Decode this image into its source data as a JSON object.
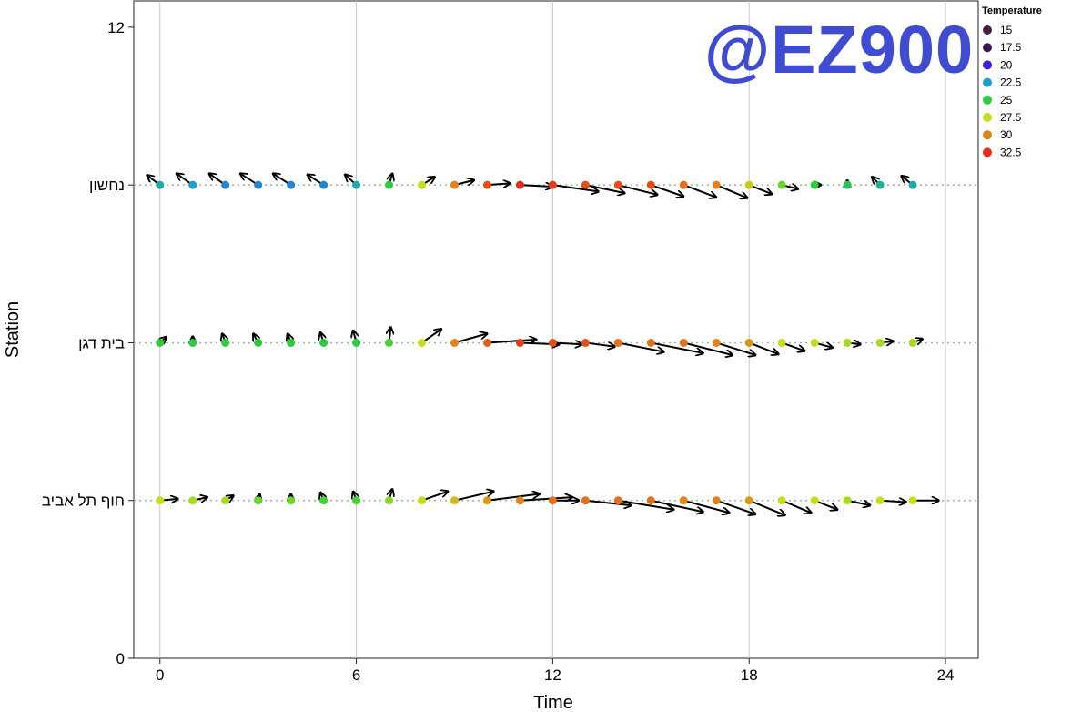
{
  "watermark": "@EZ900",
  "chart_data": {
    "type": "scatter",
    "xlabel": "Time",
    "ylabel": "Station",
    "xlim": [
      -0.8,
      25
    ],
    "ylim": [
      0,
      12.5
    ],
    "x_ticks": [
      0,
      6,
      12,
      18,
      24
    ],
    "x_tick_labels": [
      "0",
      "6",
      "12",
      "18",
      "24"
    ],
    "y_ticks": [
      0,
      12
    ],
    "y_tick_labels": [
      "0",
      "12"
    ],
    "y_category_ticks": [
      {
        "value": 9,
        "label": "נחשון"
      },
      {
        "value": 6,
        "label": "בית דגן"
      },
      {
        "value": 3,
        "label": "חוף תל אביב"
      }
    ],
    "grid": "vertical at x ticks",
    "reference_lines": "dotted horizontal line at each station",
    "legend": {
      "title": "Temperature",
      "position": "top-right",
      "entries": [
        {
          "label": "15",
          "color": "#4a2040"
        },
        {
          "label": "17.5",
          "color": "#3c1654"
        },
        {
          "label": "20",
          "color": "#3a1fd6"
        },
        {
          "label": "22.5",
          "color": "#1f9ec9"
        },
        {
          "label": "25",
          "color": "#2ccc3e"
        },
        {
          "label": "27.5",
          "color": "#c6dd1e"
        },
        {
          "label": "30",
          "color": "#e0831a"
        },
        {
          "label": "32.5",
          "color": "#e62a1c"
        }
      ]
    },
    "series": [
      {
        "station": "נחשון",
        "y": 9,
        "points": [
          {
            "x": 0,
            "temp": 23.0,
            "u": -0.4,
            "v": 0.3
          },
          {
            "x": 1,
            "temp": 22.5,
            "u": -0.5,
            "v": 0.35
          },
          {
            "x": 2,
            "temp": 22.0,
            "u": -0.5,
            "v": 0.35
          },
          {
            "x": 3,
            "temp": 22.0,
            "u": -0.55,
            "v": 0.35
          },
          {
            "x": 4,
            "temp": 22.0,
            "u": -0.55,
            "v": 0.35
          },
          {
            "x": 5,
            "temp": 22.0,
            "u": -0.5,
            "v": 0.32
          },
          {
            "x": 6,
            "temp": 23.0,
            "u": -0.35,
            "v": 0.32
          },
          {
            "x": 7,
            "temp": 25.0,
            "u": 0.1,
            "v": 0.35
          },
          {
            "x": 8,
            "temp": 27.5,
            "u": 0.4,
            "v": 0.25
          },
          {
            "x": 9,
            "temp": 30.0,
            "u": 0.6,
            "v": 0.15
          },
          {
            "x": 10,
            "temp": 31.5,
            "u": 0.7,
            "v": 0.05
          },
          {
            "x": 11,
            "temp": 32.5,
            "u": 1.0,
            "v": -0.05
          },
          {
            "x": 12,
            "temp": 32.0,
            "u": 1.4,
            "v": -0.2
          },
          {
            "x": 13,
            "temp": 31.5,
            "u": 1.2,
            "v": -0.25
          },
          {
            "x": 14,
            "temp": 31.5,
            "u": 1.2,
            "v": -0.3
          },
          {
            "x": 15,
            "temp": 31.5,
            "u": 1.0,
            "v": -0.35
          },
          {
            "x": 16,
            "temp": 30.5,
            "u": 1.0,
            "v": -0.38
          },
          {
            "x": 17,
            "temp": 30.0,
            "u": 0.95,
            "v": -0.4
          },
          {
            "x": 18,
            "temp": 28.0,
            "u": 0.7,
            "v": -0.28
          },
          {
            "x": 19,
            "temp": 26.0,
            "u": 0.5,
            "v": -0.12
          },
          {
            "x": 20,
            "temp": 25.0,
            "u": 0.2,
            "v": 0.0
          },
          {
            "x": 21,
            "temp": 24.5,
            "u": 0.0,
            "v": 0.15
          },
          {
            "x": 22,
            "temp": 23.5,
            "u": -0.25,
            "v": 0.25
          },
          {
            "x": 23,
            "temp": 23.0,
            "u": -0.35,
            "v": 0.28
          }
        ]
      },
      {
        "station": "בית דגן",
        "y": 6,
        "points": [
          {
            "x": 0,
            "temp": 25.0,
            "u": 0.2,
            "v": 0.18
          },
          {
            "x": 1,
            "temp": 25.0,
            "u": 0.0,
            "v": 0.2
          },
          {
            "x": 2,
            "temp": 25.0,
            "u": -0.1,
            "v": 0.28
          },
          {
            "x": 3,
            "temp": 25.0,
            "u": -0.15,
            "v": 0.28
          },
          {
            "x": 4,
            "temp": 25.0,
            "u": -0.1,
            "v": 0.28
          },
          {
            "x": 5,
            "temp": 25.0,
            "u": -0.1,
            "v": 0.32
          },
          {
            "x": 6,
            "temp": 25.0,
            "u": -0.1,
            "v": 0.38
          },
          {
            "x": 7,
            "temp": 25.5,
            "u": 0.05,
            "v": 0.48
          },
          {
            "x": 8,
            "temp": 27.5,
            "u": 0.6,
            "v": 0.42
          },
          {
            "x": 9,
            "temp": 30.0,
            "u": 1.0,
            "v": 0.28
          },
          {
            "x": 10,
            "temp": 31.0,
            "u": 1.5,
            "v": 0.1
          },
          {
            "x": 11,
            "temp": 32.0,
            "u": 1.2,
            "v": -0.05
          },
          {
            "x": 12,
            "temp": 31.5,
            "u": 0.9,
            "v": -0.05
          },
          {
            "x": 13,
            "temp": 31.5,
            "u": 0.9,
            "v": -0.12
          },
          {
            "x": 14,
            "temp": 30.5,
            "u": 1.4,
            "v": -0.28
          },
          {
            "x": 15,
            "temp": 30.5,
            "u": 1.6,
            "v": -0.32
          },
          {
            "x": 16,
            "temp": 30.5,
            "u": 1.5,
            "v": -0.38
          },
          {
            "x": 17,
            "temp": 30.0,
            "u": 1.2,
            "v": -0.38
          },
          {
            "x": 18,
            "temp": 29.5,
            "u": 0.9,
            "v": -0.35
          },
          {
            "x": 19,
            "temp": 27.5,
            "u": 0.7,
            "v": -0.25
          },
          {
            "x": 20,
            "temp": 27.5,
            "u": 0.55,
            "v": -0.15
          },
          {
            "x": 21,
            "temp": 27.0,
            "u": 0.4,
            "v": -0.05
          },
          {
            "x": 22,
            "temp": 27.0,
            "u": 0.4,
            "v": 0.05
          },
          {
            "x": 23,
            "temp": 27.0,
            "u": 0.3,
            "v": 0.12
          }
        ]
      },
      {
        "station": "חוף תל אביב",
        "y": 3,
        "points": [
          {
            "x": 0,
            "temp": 27.5,
            "u": 0.55,
            "v": 0.05
          },
          {
            "x": 1,
            "temp": 27.0,
            "u": 0.45,
            "v": 0.1
          },
          {
            "x": 2,
            "temp": 27.0,
            "u": 0.25,
            "v": 0.15
          },
          {
            "x": 3,
            "temp": 26.0,
            "u": 0.05,
            "v": 0.2
          },
          {
            "x": 4,
            "temp": 26.0,
            "u": 0.0,
            "v": 0.2
          },
          {
            "x": 5,
            "temp": 25.5,
            "u": -0.1,
            "v": 0.25
          },
          {
            "x": 6,
            "temp": 25.5,
            "u": -0.1,
            "v": 0.28
          },
          {
            "x": 7,
            "temp": 26.5,
            "u": 0.1,
            "v": 0.35
          },
          {
            "x": 8,
            "temp": 27.5,
            "u": 0.8,
            "v": 0.28
          },
          {
            "x": 9,
            "temp": 28.5,
            "u": 1.2,
            "v": 0.28
          },
          {
            "x": 10,
            "temp": 29.5,
            "u": 1.6,
            "v": 0.2
          },
          {
            "x": 11,
            "temp": 30.0,
            "u": 1.6,
            "v": 0.1
          },
          {
            "x": 12,
            "temp": 30.5,
            "u": 0.8,
            "v": 0.0
          },
          {
            "x": 13,
            "temp": 30.5,
            "u": 1.4,
            "v": -0.15
          },
          {
            "x": 14,
            "temp": 30.5,
            "u": 1.7,
            "v": -0.28
          },
          {
            "x": 15,
            "temp": 30.5,
            "u": 1.6,
            "v": -0.35
          },
          {
            "x": 16,
            "temp": 30.0,
            "u": 1.4,
            "v": -0.38
          },
          {
            "x": 17,
            "temp": 30.0,
            "u": 1.2,
            "v": -0.42
          },
          {
            "x": 18,
            "temp": 29.5,
            "u": 1.1,
            "v": -0.45
          },
          {
            "x": 19,
            "temp": 27.5,
            "u": 0.9,
            "v": -0.38
          },
          {
            "x": 20,
            "temp": 27.5,
            "u": 0.7,
            "v": -0.28
          },
          {
            "x": 21,
            "temp": 27.0,
            "u": 0.7,
            "v": -0.15
          },
          {
            "x": 22,
            "temp": 27.5,
            "u": 0.8,
            "v": -0.05
          },
          {
            "x": 23,
            "temp": 27.5,
            "u": 0.8,
            "v": 0.0
          }
        ]
      }
    ]
  }
}
